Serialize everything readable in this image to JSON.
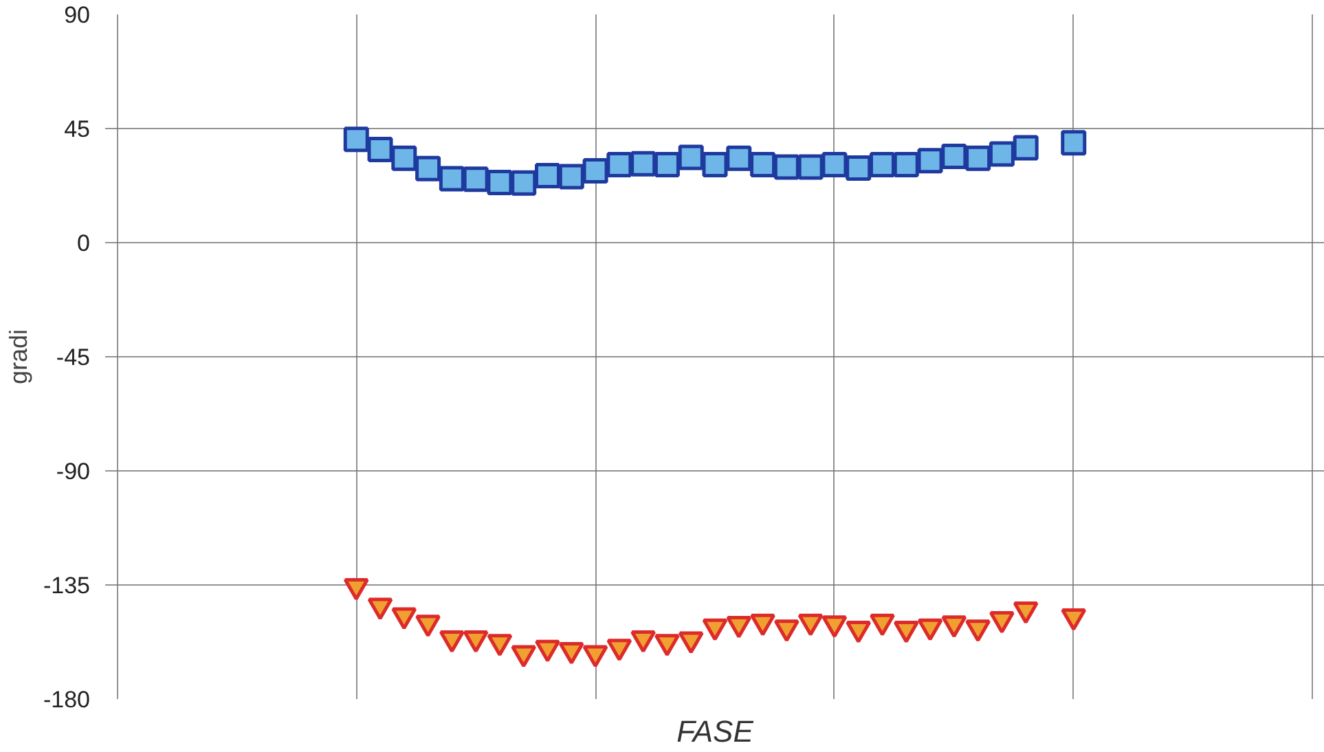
{
  "chart_data": {
    "type": "scatter",
    "xlabel": "FASE",
    "ylabel": "gradi",
    "categories": [
      null,
      null,
      null,
      null,
      null,
      null,
      null,
      null,
      null,
      null,
      null,
      null,
      null,
      null,
      null,
      null,
      null,
      null,
      null,
      null,
      null,
      null,
      null,
      null,
      null,
      null,
      null,
      null,
      null,
      null,
      null,
      null,
      null,
      null,
      null,
      null,
      null,
      null,
      null,
      null,
      null,
      null,
      null,
      null,
      null,
      null,
      null,
      null,
      null,
      null,
      null
    ],
    "series": [
      {
        "color": "#6fb6e8",
        "marker": "square",
        "values": [
          null,
          null,
          null,
          null,
          null,
          null,
          null,
          null,
          null,
          null,
          40.7,
          36.7,
          33.3,
          29.2,
          25.2,
          25.0,
          23.7,
          23.5,
          26.4,
          26.0,
          28.3,
          30.8,
          31.1,
          30.8,
          33.6,
          30.8,
          33.3,
          30.8,
          29.8,
          29.8,
          30.8,
          29.4,
          30.8,
          30.8,
          32.3,
          34.0,
          33.3,
          35.0,
          37.4,
          null,
          39.4,
          null,
          null,
          null,
          null,
          null,
          null,
          null,
          null,
          null,
          null
        ]
      },
      {
        "color": "#f0a030",
        "marker": "triangle",
        "values": [
          null,
          null,
          null,
          null,
          null,
          null,
          null,
          null,
          null,
          null,
          -135.5,
          -143.2,
          -147.0,
          -149.9,
          -156.1,
          -156.1,
          -157.5,
          -161.9,
          -159.8,
          -160.7,
          -161.9,
          -159.4,
          -156.1,
          -157.5,
          -156.5,
          -151.4,
          -150.4,
          -149.5,
          -151.8,
          -149.5,
          -150.2,
          -152.3,
          -149.5,
          -152.3,
          -151.4,
          -150.2,
          -151.8,
          -148.5,
          -144.7,
          null,
          -147.4,
          null,
          null,
          null,
          null,
          null,
          null,
          null,
          null,
          null,
          null
        ]
      }
    ],
    "ylim": [
      -180,
      90
    ],
    "yticks": [
      -180,
      -135,
      -90,
      -45,
      0,
      45,
      90
    ],
    "grid": true
  }
}
